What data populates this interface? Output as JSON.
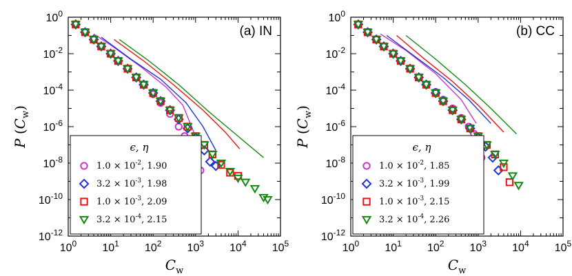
{
  "colors": {
    "magenta": "#cc33cc",
    "blue": "#1a33dd",
    "red": "#ee1111",
    "green": "#118811"
  },
  "chart_data": [
    {
      "type": "scatter",
      "panel_label": "(a) IN",
      "xlabel": "C_w",
      "ylabel": "P(C_w)",
      "xscale": "log",
      "yscale": "log",
      "xlim": [
        1,
        100000
      ],
      "ylim": [
        1e-12,
        1
      ],
      "x_ticks": [
        "10^0",
        "10^1",
        "10^2",
        "10^3",
        "10^4",
        "10^5"
      ],
      "y_ticks": [
        "10^0",
        "10^-2",
        "10^-4",
        "10^-6",
        "10^-8",
        "10^-10",
        "10^-12"
      ],
      "legend": {
        "title": "ϵ, η",
        "placement": "lower-left"
      },
      "series": [
        {
          "name": "1.0 × 10^-2, 1.90",
          "marker": "circle",
          "color": "magenta",
          "points": [
            [
              1.5,
              0.4
            ],
            [
              2.5,
              0.15
            ],
            [
              4,
              0.06
            ],
            [
              6,
              0.025
            ],
            [
              10,
              0.01
            ],
            [
              15,
              0.004
            ],
            [
              25,
              0.0015
            ],
            [
              40,
              0.0005
            ],
            [
              60,
              0.0002
            ],
            [
              100,
              6e-05
            ],
            [
              150,
              2e-05
            ],
            [
              250,
              5e-06
            ],
            [
              400,
              1e-06
            ],
            [
              550,
              3e-07
            ],
            [
              700,
              1e-07
            ],
            [
              900,
              3e-08
            ],
            [
              1300,
              4e-09
            ]
          ],
          "fit": [
            [
              4,
              0.12
            ],
            [
              10,
              0.03
            ],
            [
              50,
              0.002
            ],
            [
              200,
              0.00015
            ],
            [
              500,
              1.5e-05
            ],
            [
              1200,
              1e-07
            ]
          ]
        },
        {
          "name": "3.2 × 10^-3, 1.98",
          "marker": "diamond",
          "color": "blue",
          "points": [
            [
              1.5,
              0.4
            ],
            [
              2.5,
              0.15
            ],
            [
              4,
              0.06
            ],
            [
              6,
              0.025
            ],
            [
              10,
              0.01
            ],
            [
              15,
              0.004
            ],
            [
              25,
              0.0015
            ],
            [
              40,
              0.0005
            ],
            [
              60,
              0.0002
            ],
            [
              100,
              7e-05
            ],
            [
              150,
              2.5e-05
            ],
            [
              250,
              8e-06
            ],
            [
              400,
              2.5e-06
            ],
            [
              650,
              8e-07
            ],
            [
              1000,
              2.5e-07
            ],
            [
              1600,
              5e-08
            ],
            [
              2200,
              1.2e-08
            ],
            [
              3000,
              7e-09
            ]
          ],
          "fit": [
            [
              6,
              0.08
            ],
            [
              30,
              0.005
            ],
            [
              150,
              0.0004
            ],
            [
              600,
              2e-05
            ],
            [
              1500,
              1e-06
            ],
            [
              3000,
              5e-08
            ]
          ]
        },
        {
          "name": "1.0 × 10^-3, 2.09",
          "marker": "square",
          "color": "red",
          "points": [
            [
              1.5,
              0.4
            ],
            [
              2.5,
              0.15
            ],
            [
              4,
              0.06
            ],
            [
              6,
              0.025
            ],
            [
              10,
              0.01
            ],
            [
              15,
              0.004
            ],
            [
              25,
              0.0015
            ],
            [
              40,
              0.0005
            ],
            [
              60,
              0.0002
            ],
            [
              100,
              7e-05
            ],
            [
              150,
              2.5e-05
            ],
            [
              250,
              8e-06
            ],
            [
              400,
              3e-06
            ],
            [
              650,
              1e-06
            ],
            [
              1000,
              3e-07
            ],
            [
              1600,
              1e-07
            ],
            [
              2500,
              3e-08
            ],
            [
              4000,
              8e-09
            ],
            [
              6500,
              3e-09
            ],
            [
              10000,
              2e-09
            ]
          ],
          "fit": [
            [
              12,
              0.06
            ],
            [
              60,
              0.004
            ],
            [
              300,
              0.0002
            ],
            [
              1500,
              8e-06
            ],
            [
              5000,
              5e-07
            ],
            [
              11000,
              6e-08
            ]
          ]
        },
        {
          "name": "3.2 × 10^-4, 2.15",
          "marker": "triangle-down",
          "color": "green",
          "points": [
            [
              1.5,
              0.4
            ],
            [
              2.5,
              0.15
            ],
            [
              4,
              0.06
            ],
            [
              6,
              0.025
            ],
            [
              10,
              0.01
            ],
            [
              15,
              0.004
            ],
            [
              25,
              0.0015
            ],
            [
              40,
              0.0005
            ],
            [
              60,
              0.0002
            ],
            [
              100,
              7e-05
            ],
            [
              150,
              2.5e-05
            ],
            [
              250,
              8e-06
            ],
            [
              400,
              3e-06
            ],
            [
              650,
              1e-06
            ],
            [
              1000,
              3e-07
            ],
            [
              1600,
              1e-07
            ],
            [
              2500,
              3e-08
            ],
            [
              4000,
              1e-08
            ],
            [
              6500,
              3.5e-09
            ],
            [
              10000,
              1.5e-09
            ],
            [
              15000,
              9e-10
            ],
            [
              25000,
              4e-10
            ],
            [
              40000,
              1.3e-10
            ],
            [
              50000,
              1e-10
            ]
          ],
          "fit": [
            [
              16,
              0.06
            ],
            [
              80,
              0.004
            ],
            [
              400,
              0.0002
            ],
            [
              2000,
              7e-06
            ],
            [
              10000,
              3e-07
            ],
            [
              40000,
              2e-08
            ]
          ]
        }
      ]
    },
    {
      "type": "scatter",
      "panel_label": "(b) CC",
      "xlabel": "C_w",
      "ylabel": "P(C_w)",
      "xscale": "log",
      "yscale": "log",
      "xlim": [
        1,
        100000
      ],
      "ylim": [
        1e-12,
        1
      ],
      "x_ticks": [
        "10^0",
        "10^1",
        "10^2",
        "10^3",
        "10^4",
        "10^5"
      ],
      "y_ticks": [
        "10^0",
        "10^-2",
        "10^-4",
        "10^-6",
        "10^-8",
        "10^-10",
        "10^-12"
      ],
      "legend": {
        "title": "ϵ, η",
        "placement": "lower-left"
      },
      "series": [
        {
          "name": "1.0 × 10^-2, 1.85",
          "marker": "circle",
          "color": "magenta",
          "points": [
            [
              1.5,
              0.4
            ],
            [
              2.5,
              0.15
            ],
            [
              4,
              0.06
            ],
            [
              6,
              0.025
            ],
            [
              10,
              0.01
            ],
            [
              15,
              0.004
            ],
            [
              25,
              0.0015
            ],
            [
              40,
              0.0005
            ],
            [
              60,
              0.0002
            ],
            [
              100,
              8e-05
            ],
            [
              150,
              3e-05
            ],
            [
              250,
              1e-05
            ],
            [
              400,
              3e-06
            ],
            [
              600,
              1e-06
            ],
            [
              800,
              4e-07
            ],
            [
              1000,
              1e-07
            ],
            [
              1200,
              2e-08
            ]
          ],
          "fit": [
            [
              5,
              0.12
            ],
            [
              20,
              0.015
            ],
            [
              100,
              0.0008
            ],
            [
              400,
              3e-05
            ],
            [
              900,
              1.5e-06
            ]
          ]
        },
        {
          "name": "3.2 × 10^-3, 1.99",
          "marker": "diamond",
          "color": "blue",
          "points": [
            [
              1.5,
              0.4
            ],
            [
              2.5,
              0.15
            ],
            [
              4,
              0.06
            ],
            [
              6,
              0.025
            ],
            [
              10,
              0.01
            ],
            [
              15,
              0.004
            ],
            [
              25,
              0.0015
            ],
            [
              40,
              0.0005
            ],
            [
              60,
              0.0002
            ],
            [
              100,
              7e-05
            ],
            [
              150,
              2.5e-05
            ],
            [
              250,
              8e-06
            ],
            [
              400,
              2.5e-06
            ],
            [
              650,
              8e-07
            ],
            [
              1000,
              2.5e-07
            ],
            [
              1500,
              8e-08
            ],
            [
              2200,
              2e-08
            ],
            [
              3000,
              4e-09
            ]
          ],
          "fit": [
            [
              7,
              0.1
            ],
            [
              30,
              0.008
            ],
            [
              150,
              0.0005
            ],
            [
              600,
              3e-05
            ],
            [
              2000,
              1.5e-06
            ]
          ]
        },
        {
          "name": "1.0 × 10^-3, 2.15",
          "marker": "square",
          "color": "red",
          "points": [
            [
              1.5,
              0.4
            ],
            [
              2.5,
              0.15
            ],
            [
              4,
              0.06
            ],
            [
              6,
              0.025
            ],
            [
              10,
              0.01
            ],
            [
              15,
              0.004
            ],
            [
              25,
              0.0015
            ],
            [
              40,
              0.0005
            ],
            [
              60,
              0.0002
            ],
            [
              100,
              7e-05
            ],
            [
              150,
              2.5e-05
            ],
            [
              250,
              8e-06
            ],
            [
              400,
              2.5e-06
            ],
            [
              650,
              8e-07
            ],
            [
              1000,
              3e-07
            ],
            [
              1600,
              1e-07
            ],
            [
              2500,
              3e-08
            ],
            [
              4000,
              6e-09
            ],
            [
              5500,
              9e-10
            ]
          ],
          "fit": [
            [
              12,
              0.1
            ],
            [
              50,
              0.006
            ],
            [
              250,
              0.0003
            ],
            [
              1000,
              1.5e-05
            ],
            [
              4000,
              5e-07
            ]
          ]
        },
        {
          "name": "3.2 × 10^-4, 2.26",
          "marker": "triangle-down",
          "color": "green",
          "points": [
            [
              1.5,
              0.4
            ],
            [
              2.5,
              0.15
            ],
            [
              4,
              0.06
            ],
            [
              6,
              0.025
            ],
            [
              10,
              0.01
            ],
            [
              15,
              0.004
            ],
            [
              25,
              0.0015
            ],
            [
              40,
              0.0005
            ],
            [
              60,
              0.0002
            ],
            [
              100,
              7e-05
            ],
            [
              150,
              2.5e-05
            ],
            [
              250,
              8e-06
            ],
            [
              400,
              2.5e-06
            ],
            [
              650,
              8e-07
            ],
            [
              1000,
              3e-07
            ],
            [
              1600,
              1e-07
            ],
            [
              2500,
              3e-08
            ],
            [
              4000,
              1e-08
            ],
            [
              6500,
              2e-09
            ],
            [
              9000,
              6e-10
            ]
          ],
          "fit": [
            [
              20,
              0.1
            ],
            [
              100,
              0.005
            ],
            [
              500,
              0.0002
            ],
            [
              2000,
              1e-05
            ],
            [
              8000,
              4e-07
            ]
          ]
        }
      ]
    }
  ]
}
